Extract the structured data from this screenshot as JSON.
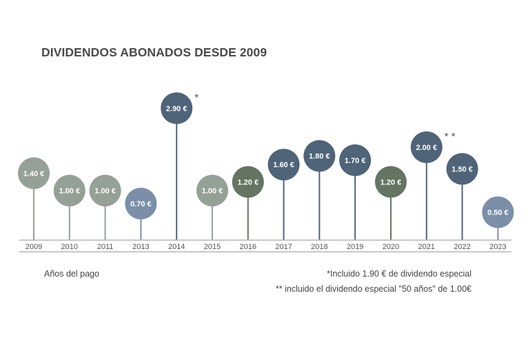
{
  "title": "DIVIDENDOS ABONADOS DESDE 2009",
  "chart_data": {
    "type": "lollipop",
    "title": "DIVIDENDOS ABONADOS DESDE 2009",
    "xlabel": "Años del pago",
    "ylabel": "",
    "categories": [
      "2009",
      "2010",
      "2011",
      "2013",
      "2014",
      "2015",
      "2016",
      "2017",
      "2018",
      "2019",
      "2020",
      "2021",
      "2022",
      "2023"
    ],
    "values": [
      1.4,
      1.0,
      1.0,
      0.7,
      2.9,
      1.0,
      1.2,
      1.6,
      1.8,
      1.7,
      1.2,
      2.0,
      1.5,
      0.5
    ],
    "value_labels": [
      "1.40 €",
      "1.00 €",
      "1.00 €",
      "0.70 €",
      "2.90 €",
      "1.00 €",
      "1.20 €",
      "1.60 €",
      "1.80 €",
      "1.70 €",
      "1.20 €",
      "2.00 €",
      "1.50 €",
      "0.50 €"
    ],
    "markers": [
      "",
      "",
      "",
      "",
      "*",
      "",
      "",
      "",
      "",
      "",
      "",
      "**",
      "",
      ""
    ],
    "colors": [
      "#95a197",
      "#95a197",
      "#95a197",
      "#7b8fa8",
      "#4f6478",
      "#95a197",
      "#647563",
      "#4f6478",
      "#4f6478",
      "#4f6478",
      "#647563",
      "#4f6478",
      "#4f6478",
      "#7b8fa8"
    ],
    "ylim": [
      0,
      3.2
    ],
    "grid": false,
    "legend": "none"
  },
  "footnotes": {
    "axis_label": "Años del pago",
    "note1": "*Incluido 1.90 € de dividendo especial",
    "note2": "** incluido el dividendo especial \"50 años\" de 1.00€"
  }
}
